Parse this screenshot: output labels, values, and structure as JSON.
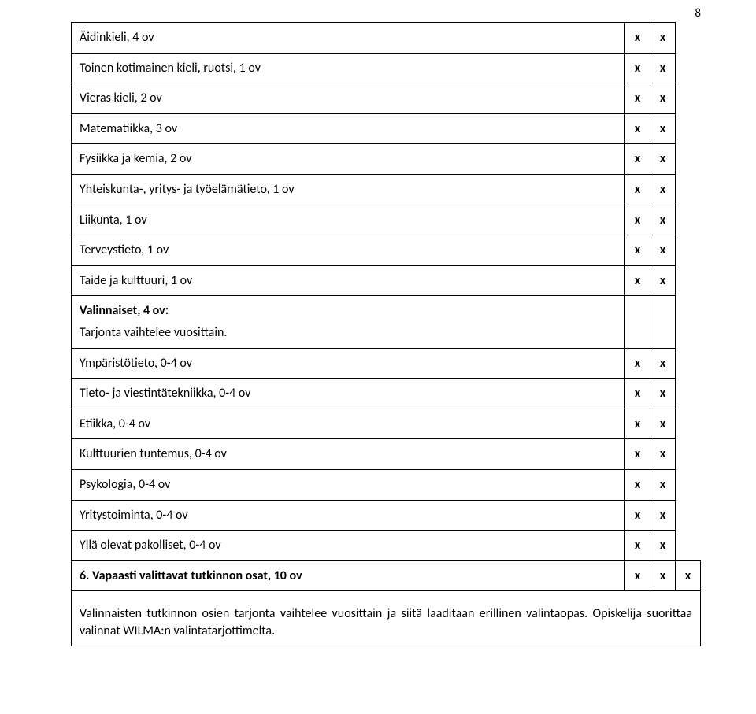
{
  "page_number": "8",
  "mark_glyph": "x",
  "rows": [
    {
      "label": "Äidinkieli, 4 ov",
      "c1": true,
      "c2": true
    },
    {
      "label": "Toinen kotimainen kieli, ruotsi, 1 ov",
      "c1": true,
      "c2": true
    },
    {
      "label": "Vieras kieli, 2 ov",
      "c1": true,
      "c2": true
    },
    {
      "label": "Matematiikka, 3 ov",
      "c1": true,
      "c2": true
    },
    {
      "label": "Fysiikka ja kemia, 2 ov",
      "c1": true,
      "c2": true
    },
    {
      "label": "Yhteiskunta-, yritys- ja työelämätieto, 1 ov",
      "c1": true,
      "c2": true
    },
    {
      "label": "Liikunta, 1 ov",
      "c1": true,
      "c2": true
    },
    {
      "label": "Terveystieto, 1 ov",
      "c1": true,
      "c2": true
    },
    {
      "label": "Taide ja kulttuuri, 1 ov",
      "c1": true,
      "c2": true
    }
  ],
  "valinnaiset": {
    "heading": "Valinnaiset, 4 ov:",
    "sub": "Tarjonta vaihtelee vuosittain."
  },
  "opt_rows": [
    {
      "label": "Ympäristötieto, 0-4 ov",
      "c1": true,
      "c2": true
    },
    {
      "label": "Tieto- ja viestintätekniikka, 0-4 ov",
      "c1": true,
      "c2": true
    },
    {
      "label": "Etiikka, 0-4 ov",
      "c1": true,
      "c2": true
    },
    {
      "label": "Kulttuurien tuntemus, 0-4 ov",
      "c1": true,
      "c2": true
    },
    {
      "label": "Psykologia, 0-4 ov",
      "c1": true,
      "c2": true
    },
    {
      "label": "Yritystoiminta, 0-4 ov",
      "c1": true,
      "c2": true
    },
    {
      "label": "Yllä olevat pakolliset, 0-4 ov",
      "c1": true,
      "c2": true
    }
  ],
  "section6": {
    "title": "6. Vapaasti valittavat tutkinnon osat, 10 ov",
    "c1": true,
    "c2": true,
    "c3": true,
    "body": "Valinnaisten tutkinnon osien tarjonta vaihtelee vuosittain ja siitä laaditaan erillinen valintaopas. Opiskelija suorittaa valinnat WILMA:n valintatarjottimelta."
  }
}
